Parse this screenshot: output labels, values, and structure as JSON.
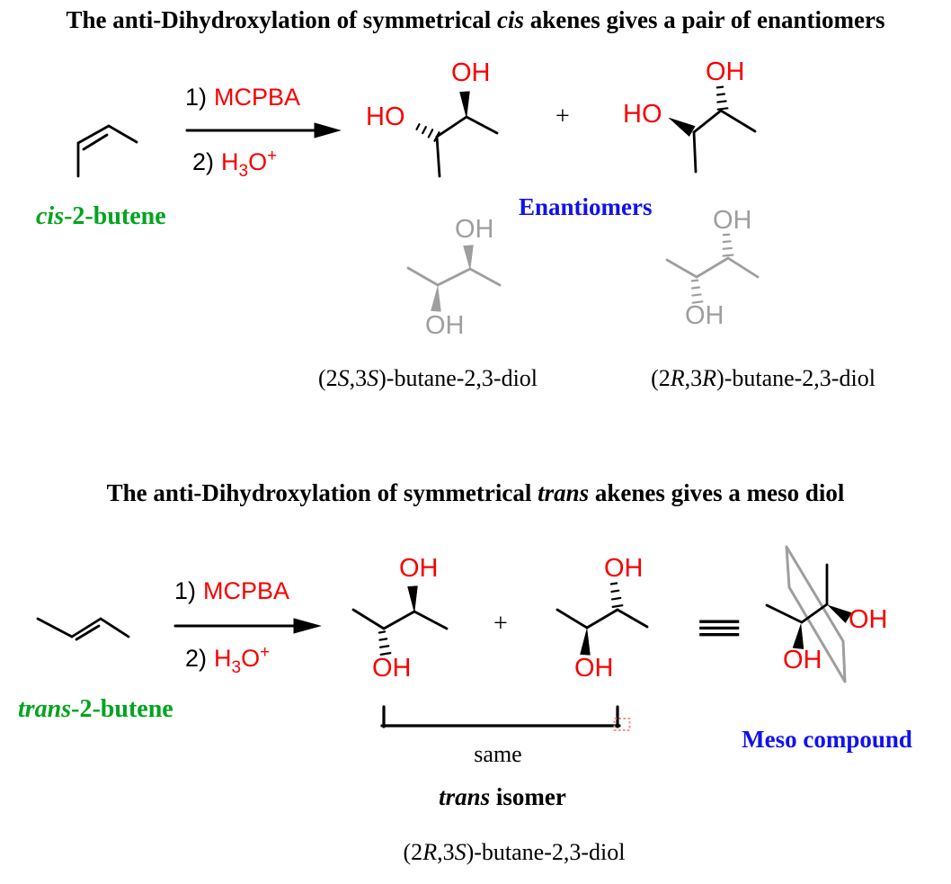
{
  "colors": {
    "red": "#f80000",
    "green": "#00a41e",
    "blue": "#1111ee",
    "gray": "#9e9e9e",
    "black": "#000000",
    "squiggle_red": "#ef8f8f"
  },
  "chem": {
    "oh": "OH",
    "ho": "HO",
    "step1": "1)",
    "step2": "2)",
    "mcpba": "MCPBA",
    "hydronium_h": "H",
    "hydronium_3": "3",
    "hydronium_o": "O",
    "hydronium_plus": "+",
    "plus": "+",
    "equiv": "≡"
  },
  "section1": {
    "title_parts": [
      {
        "t": "The anti-Dihydroxylation of symmetrical "
      },
      {
        "t": "cis",
        "i": true
      },
      {
        "t": " akenes gives a pair of enantiomers"
      }
    ],
    "reactant_parts": [
      {
        "t": "cis",
        "i": true
      },
      {
        "t": "-2-butene"
      }
    ],
    "enantiomers_label": "Enantiomers",
    "name_ss_parts": [
      {
        "t": "(2"
      },
      {
        "t": "S",
        "i": true
      },
      {
        "t": ",3"
      },
      {
        "t": "S",
        "i": true
      },
      {
        "t": ")-butane-2,3-diol"
      }
    ],
    "name_rr_parts": [
      {
        "t": "(2"
      },
      {
        "t": "R",
        "i": true
      },
      {
        "t": ",3"
      },
      {
        "t": "R",
        "i": true
      },
      {
        "t": ")-butane-2,3-diol"
      }
    ]
  },
  "section2": {
    "title_parts": [
      {
        "t": "The anti-Dihydroxylation of symmetrical "
      },
      {
        "t": "trans",
        "i": true
      },
      {
        "t": " akenes gives a meso diol"
      }
    ],
    "reactant_parts": [
      {
        "t": "trans",
        "i": true
      },
      {
        "t": "-2-butene"
      }
    ],
    "same_label": "same",
    "isomer_parts": [
      {
        "t": "trans",
        "i": true
      },
      {
        "t": " isomer"
      }
    ],
    "name_rs_parts": [
      {
        "t": "(2"
      },
      {
        "t": "R",
        "i": true
      },
      {
        "t": ",3"
      },
      {
        "t": "S",
        "i": true
      },
      {
        "t": ")-butane-2,3-diol"
      }
    ],
    "meso_label": "Meso compound"
  }
}
